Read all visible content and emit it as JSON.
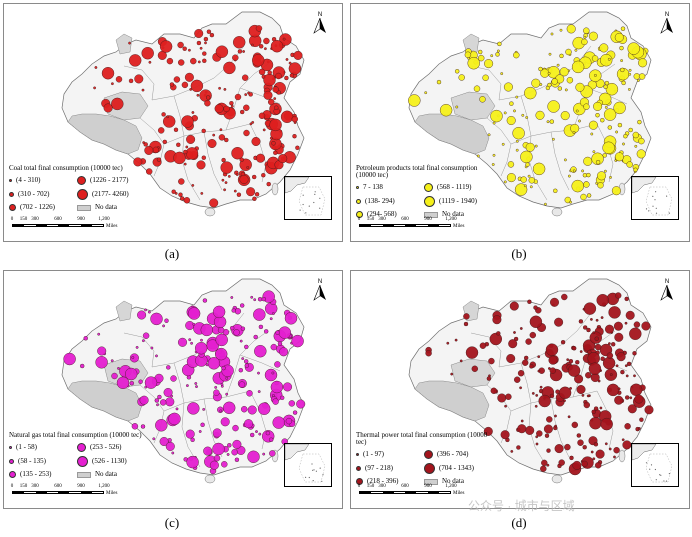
{
  "panels": [
    {
      "id": "a",
      "caption": "(a)",
      "legend_title": "Coal total final consumption (10000 tec)",
      "color": "#dd1f1f",
      "classes": [
        "(4 - 310)",
        "(310 - 702)",
        "(702 - 1226)",
        "(1226 - 2177)",
        "(2177- 4260)"
      ],
      "nodata_label": "No data"
    },
    {
      "id": "b",
      "caption": "(b)",
      "legend_title": "Petroleum products total final consumption (10000 tec)",
      "color": "#f5f01a",
      "classes": [
        "7 - 138",
        "(138- 294)",
        "(294- 568)",
        "(568 - 1119)",
        "(1119 - 1940)"
      ],
      "nodata_label": "No data"
    },
    {
      "id": "c",
      "caption": "(c)",
      "legend_title": "Natural gas total final consumption (10000 tec)",
      "color": "#e41fd0",
      "classes": [
        "(1 - 58)",
        "(58 - 135)",
        "(135 - 253)",
        "(253 - 526)",
        "(526 - 1130)"
      ],
      "nodata_label": "No data"
    },
    {
      "id": "d",
      "caption": "(d)",
      "legend_title": "Thermal power total final consumption (10000 tec)",
      "color": "#a3141c",
      "classes": [
        "(1 - 97)",
        "(97 - 218)",
        "(218 - 396)",
        "(396 - 704)",
        "(704 - 1343)"
      ],
      "nodata_label": "No data"
    }
  ],
  "scale": {
    "ticks": [
      "0",
      "150",
      "300",
      "600",
      "900",
      "1,200"
    ],
    "unit": "Miles"
  },
  "north_label": "N",
  "watermark": "公众号 · 城市与区域"
}
